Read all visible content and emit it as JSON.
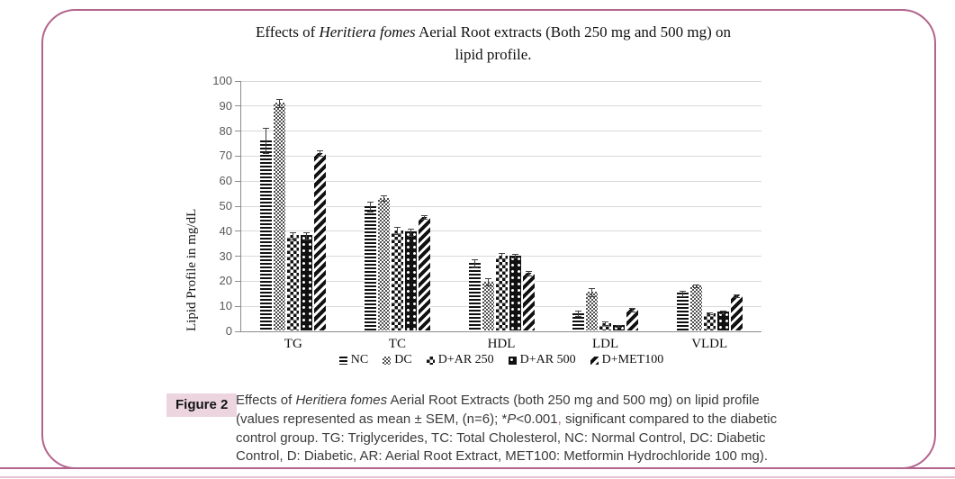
{
  "figure": {
    "border_color": "#b2648c",
    "title_segments": [
      {
        "t": "Effects of ",
        "s": ""
      },
      {
        "t": "Heritiera fomes",
        "s": "i"
      },
      {
        "t": " Aerial Root extracts (Both 250 mg and 500 mg) on lipid profile.",
        "s": ""
      }
    ],
    "caption": {
      "label": "Figure 2",
      "label_bg": "#ecd5df",
      "segments": [
        {
          "t": "Effects of ",
          "s": ""
        },
        {
          "t": "Heritiera fomes",
          "s": "i"
        },
        {
          "t": " Aerial Root Extracts (both 250 mg and 500 mg) on lipid profile (values represented as mean ± SEM, (n=6); *",
          "s": ""
        },
        {
          "t": "P",
          "s": "i"
        },
        {
          "t": "<0.001",
          "s": ""
        },
        {
          "t": ",",
          "s": "pink"
        },
        {
          "t": " significant compared to the diabetic control group. TG: Triglycerides, TC: Total Cholesterol, NC: Normal Control, DC: Diabetic Control, D: Diabetic, AR: Aerial Root Extract, MET100: Metformin Hydrochloride 100 mg).",
          "s": ""
        }
      ]
    }
  },
  "chart_data": {
    "type": "bar",
    "title": "Effects of Heritiera fomes Aerial Root extracts (Both 250 mg and 500 mg) on lipid profile.",
    "xlabel": "",
    "ylabel": "Lipid Profile in mg/dL",
    "ylim": [
      0,
      100
    ],
    "ytick_step": 10,
    "grid": true,
    "legend_position": "bottom",
    "categories": [
      "TG",
      "TC",
      "HDL",
      "LDL",
      "VLDL"
    ],
    "series": [
      {
        "name": "NC",
        "pattern": "hstripes",
        "values": [
          76,
          49.5,
          27,
          7,
          15
        ],
        "sem": [
          5,
          2,
          1.5,
          1,
          1
        ]
      },
      {
        "name": "DC",
        "pattern": "finecheck",
        "values": [
          91,
          53,
          19.5,
          15.5,
          18
        ],
        "sem": [
          1.5,
          1,
          1.5,
          1.5,
          0.5
        ]
      },
      {
        "name": "D+AR 250",
        "pattern": "checker",
        "values": [
          38,
          40,
          30,
          3,
          7
        ],
        "sem": [
          1.5,
          1.5,
          1,
          0.8,
          0.5
        ]
      },
      {
        "name": "D+AR 500",
        "pattern": "dots",
        "values": [
          38,
          39.5,
          30,
          2,
          7.5
        ],
        "sem": [
          1.5,
          1.5,
          0.8,
          0.5,
          0.5
        ]
      },
      {
        "name": "D+MET100",
        "pattern": "diag",
        "values": [
          71,
          45.5,
          23,
          8.5,
          14
        ],
        "sem": [
          1,
          0.8,
          0.8,
          0.8,
          0.5
        ]
      }
    ]
  }
}
